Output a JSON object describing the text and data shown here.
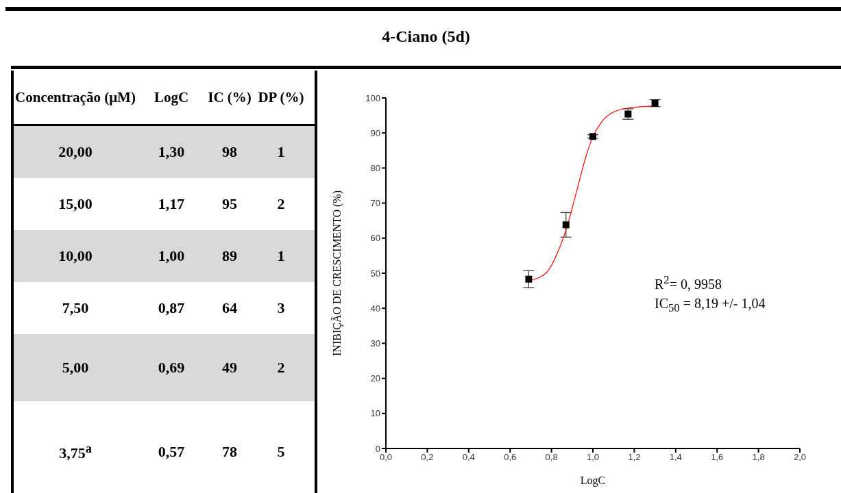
{
  "chart_data": [
    {
      "type": "other",
      "title": "4-Ciano (5d)",
      "categories": [
        "Concentração (μM)",
        "LogC",
        "IC (%)",
        "DP (%)"
      ],
      "annotations": [
        "20,00",
        "1,30",
        "98",
        "1",
        "15,00",
        "1,17",
        "95",
        "2",
        "10,00",
        "1,00",
        "89",
        "1",
        "7,50",
        "0,87",
        "64",
        "3",
        "5,00",
        "0,69",
        "49",
        "2",
        "3,75$^{a}$",
        "0,57",
        "78",
        "5"
      ]
    },
    {
      "type": "scatter",
      "xlabel": "LogC",
      "ylabel": "INIBIÇÃO DE CRESCIMENTO (%)",
      "xlim": [
        0,
        2
      ],
      "ylim": [
        0,
        100
      ],
      "xticks": [
        {
          "value": 0,
          "label": "0,0"
        },
        {
          "value": 0.2,
          "label": "0,2"
        },
        {
          "value": 0.4,
          "label": "0,4"
        },
        {
          "value": 0.6,
          "label": "0,6"
        },
        {
          "value": 0.8,
          "label": "0,8"
        },
        {
          "value": 1,
          "label": "1,0"
        },
        {
          "value": 1.2,
          "label": "1,2"
        },
        {
          "value": 1.4,
          "label": "1,4"
        },
        {
          "value": 1.6,
          "label": "1,6"
        },
        {
          "value": 1.8,
          "label": "1,8"
        },
        {
          "value": 2,
          "label": "2,0"
        }
      ],
      "yticks": [
        0,
        10,
        20,
        30,
        40,
        50,
        60,
        70,
        80,
        90,
        100
      ],
      "grid": false,
      "legend": false,
      "marker": "square",
      "series": [
        {
          "type": "scatter",
          "color": "#000000",
          "x": [
            0.69,
            0.87,
            1.0,
            1.17,
            1.3
          ],
          "values": [
            48.3,
            63.8,
            89.0,
            95.4,
            98.5
          ],
          "errors": [
            2.4,
            3.5,
            0.5,
            1.5,
            1
          ]
        },
        {
          "type": "line",
          "color": "#ff0000",
          "marker": "none",
          "x": [
            0.7,
            0.776,
            0.829,
            0.878,
            0.926,
            0.968,
            0.998,
            1.043,
            1.097,
            1.182,
            1.303
          ],
          "values": [
            48.0,
            50.2,
            55.8,
            63.9,
            74.4,
            83.6,
            88.6,
            93.2,
            95.9,
            97.2,
            97.7
          ]
        }
      ],
      "annotations": [
        "R$^{2}$= 0, 9958",
        "IC$_{50}$ = 8,19 +/- 1,04"
      ]
    }
  ]
}
